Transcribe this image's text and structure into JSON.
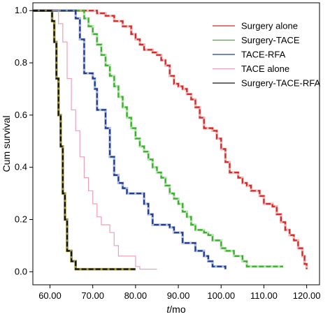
{
  "chart_data": {
    "type": "line",
    "subtype": "step",
    "xlabel_italic": "t",
    "xlabel_rest": "/mo",
    "ylabel": "Cum survival",
    "xlim": [
      56,
      123
    ],
    "ylim": [
      -0.05,
      1.03
    ],
    "x_ticks": [
      60,
      70,
      80,
      90,
      100,
      110,
      120
    ],
    "x_tick_labels": [
      "60.00",
      "70.00",
      "80.00",
      "90.00",
      "100.00",
      "110.00",
      "120.00"
    ],
    "y_ticks": [
      0.0,
      0.2,
      0.4,
      0.6,
      0.8,
      1.0
    ],
    "y_tick_labels": [
      "0.0",
      "0.2",
      "0.4",
      "0.6",
      "0.8",
      "1.0"
    ],
    "legend_position": "top-right",
    "series": [
      {
        "name": "Surgery alone",
        "color": "#d42a2a",
        "line_style": "dashed",
        "points": [
          [
            56,
            1.0
          ],
          [
            69,
            1.0
          ],
          [
            71,
            0.99
          ],
          [
            73,
            0.98
          ],
          [
            75,
            0.96
          ],
          [
            77,
            0.94
          ],
          [
            79,
            0.91
          ],
          [
            80,
            0.89
          ],
          [
            81,
            0.87
          ],
          [
            82,
            0.85
          ],
          [
            84,
            0.84
          ],
          [
            85,
            0.83
          ],
          [
            86,
            0.81
          ],
          [
            87,
            0.79
          ],
          [
            88,
            0.75
          ],
          [
            89,
            0.72
          ],
          [
            90,
            0.71
          ],
          [
            91,
            0.7
          ],
          [
            92,
            0.68
          ],
          [
            93,
            0.66
          ],
          [
            94,
            0.63
          ],
          [
            95,
            0.59
          ],
          [
            96,
            0.55
          ],
          [
            97,
            0.55
          ],
          [
            98,
            0.54
          ],
          [
            99,
            0.51
          ],
          [
            100,
            0.47
          ],
          [
            101,
            0.42
          ],
          [
            102,
            0.38
          ],
          [
            104,
            0.36
          ],
          [
            105,
            0.34
          ],
          [
            106,
            0.33
          ],
          [
            107,
            0.31
          ],
          [
            109,
            0.29
          ],
          [
            110,
            0.26
          ],
          [
            112,
            0.25
          ],
          [
            113,
            0.22
          ],
          [
            114,
            0.19
          ],
          [
            115,
            0.16
          ],
          [
            116,
            0.14
          ],
          [
            117,
            0.12
          ],
          [
            118,
            0.09
          ],
          [
            119,
            0.06
          ],
          [
            119.5,
            0.03
          ],
          [
            120,
            0.01
          ]
        ]
      },
      {
        "name": "Surgery-TACE",
        "color": "#3ab02c",
        "line_style": "dashed",
        "points": [
          [
            56,
            1.0
          ],
          [
            67,
            1.0
          ],
          [
            68,
            0.97
          ],
          [
            69,
            0.94
          ],
          [
            70,
            0.91
          ],
          [
            71,
            0.87
          ],
          [
            72,
            0.83
          ],
          [
            73,
            0.79
          ],
          [
            74,
            0.75
          ],
          [
            75,
            0.71
          ],
          [
            76,
            0.67
          ],
          [
            77,
            0.63
          ],
          [
            78,
            0.59
          ],
          [
            79,
            0.55
          ],
          [
            80,
            0.51
          ],
          [
            81,
            0.48
          ],
          [
            82,
            0.46
          ],
          [
            83,
            0.43
          ],
          [
            84,
            0.4
          ],
          [
            85,
            0.38
          ],
          [
            86,
            0.36
          ],
          [
            87,
            0.33
          ],
          [
            88,
            0.3
          ],
          [
            89,
            0.28
          ],
          [
            90,
            0.26
          ],
          [
            91,
            0.23
          ],
          [
            92,
            0.21
          ],
          [
            93,
            0.18
          ],
          [
            94,
            0.16
          ],
          [
            96,
            0.15
          ],
          [
            97,
            0.14
          ],
          [
            98,
            0.12
          ],
          [
            100,
            0.09
          ],
          [
            101,
            0.08
          ],
          [
            103,
            0.06
          ],
          [
            105,
            0.04
          ],
          [
            106,
            0.02
          ],
          [
            114.5,
            0.02
          ]
        ]
      },
      {
        "name": "TACE-RFA",
        "color": "#1e3c96",
        "line_style": "dashed",
        "points": [
          [
            56,
            1.0
          ],
          [
            65,
            1.0
          ],
          [
            66,
            0.97
          ],
          [
            67,
            0.89
          ],
          [
            68,
            0.76
          ],
          [
            70,
            0.74
          ],
          [
            70.5,
            0.7
          ],
          [
            71,
            0.62
          ],
          [
            73,
            0.55
          ],
          [
            74,
            0.44
          ],
          [
            75,
            0.37
          ],
          [
            76,
            0.34
          ],
          [
            77,
            0.32
          ],
          [
            78,
            0.3
          ],
          [
            82,
            0.26
          ],
          [
            83,
            0.22
          ],
          [
            84,
            0.18
          ],
          [
            88,
            0.17
          ],
          [
            89,
            0.15
          ],
          [
            91,
            0.11
          ],
          [
            94,
            0.08
          ],
          [
            96,
            0.06
          ],
          [
            97,
            0.04
          ],
          [
            98,
            0.02
          ],
          [
            101,
            0.01
          ]
        ]
      },
      {
        "name": "TACE alone",
        "color": "#f0a0b4",
        "line_style": "solid-thin",
        "points": [
          [
            56,
            1.0
          ],
          [
            61,
            1.0
          ],
          [
            62,
            0.95
          ],
          [
            63,
            0.88
          ],
          [
            64,
            0.74
          ],
          [
            65,
            0.62
          ],
          [
            66,
            0.54
          ],
          [
            67,
            0.44
          ],
          [
            68,
            0.36
          ],
          [
            69,
            0.31
          ],
          [
            70,
            0.26
          ],
          [
            71,
            0.21
          ],
          [
            72,
            0.18
          ],
          [
            74,
            0.15
          ],
          [
            75,
            0.1
          ],
          [
            76,
            0.06
          ],
          [
            80,
            0.02
          ],
          [
            81,
            0.01
          ],
          [
            85,
            0.01
          ]
        ]
      },
      {
        "name": "Surgery-TACE-RFA",
        "color": "#111111",
        "line_style": "dashed",
        "points": [
          [
            56,
            1.0
          ],
          [
            60,
            1.0
          ],
          [
            60.5,
            0.96
          ],
          [
            61,
            0.88
          ],
          [
            61.5,
            0.74
          ],
          [
            62,
            0.6
          ],
          [
            62.5,
            0.48
          ],
          [
            63,
            0.3
          ],
          [
            63.5,
            0.2
          ],
          [
            64,
            0.08
          ],
          [
            65,
            0.04
          ],
          [
            66,
            0.01
          ],
          [
            80,
            0.01
          ]
        ]
      }
    ],
    "yellow_underlay": {
      "color": "#e6d95a",
      "points": [
        [
          56,
          1.0
        ],
        [
          60,
          1.0
        ],
        [
          60.5,
          0.96
        ],
        [
          61,
          0.88
        ],
        [
          61.5,
          0.74
        ],
        [
          62,
          0.6
        ],
        [
          62.5,
          0.48
        ],
        [
          63,
          0.3
        ],
        [
          63.5,
          0.2
        ],
        [
          64,
          0.08
        ],
        [
          65,
          0.04
        ],
        [
          66,
          0.01
        ],
        [
          80,
          0.01
        ]
      ]
    }
  }
}
